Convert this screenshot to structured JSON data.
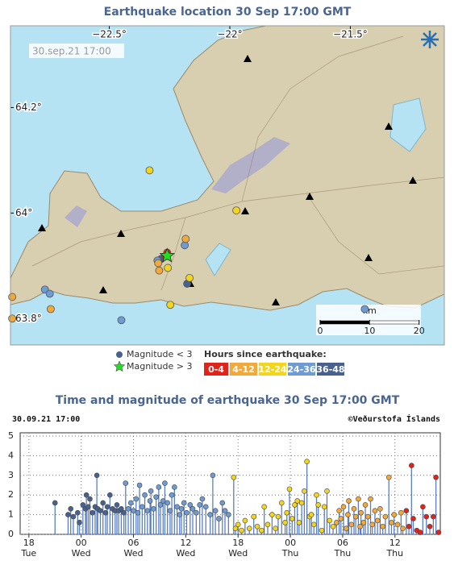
{
  "chart_data": [
    {
      "type": "map",
      "title": "Earthquake location   30 Sep 17:00 GMT",
      "timestamp": "30.sep.21  17:00",
      "xlim": [
        -22.91,
        -21.11
      ],
      "ylim": [
        63.75,
        64.355
      ],
      "xticks": [
        {
          "value": -22.5,
          "label": "−22.5°"
        },
        {
          "value": -22,
          "label": "−22°"
        },
        {
          "value": -21.5,
          "label": "−21.5°"
        }
      ],
      "yticks": [
        {
          "value": 64.2,
          "label": "64.2°"
        },
        {
          "value": 64,
          "label": "64°"
        },
        {
          "value": 63.8,
          "label": "63.8°"
        }
      ],
      "scale": {
        "unit": "km",
        "ticks": [
          0,
          10,
          20
        ]
      },
      "symbols": [
        {
          "name": "Magnitude < 3",
          "color": "#48618e"
        },
        {
          "name": "Magnitude > 3",
          "color": "#22dd22"
        }
      ],
      "legend_title": "Hours since earthquake:",
      "series": [
        {
          "name": "0-4",
          "color": "#e2231a",
          "x": [
            -22.267,
            -22.26
          ],
          "values": [
            63.918,
            63.925
          ]
        },
        {
          "name": "4-12",
          "color": "#f3a93a",
          "x": [
            -22.183,
            -22.297,
            -22.293,
            -22.903,
            -22.743,
            -22.903
          ],
          "values": [
            63.951,
            63.905,
            63.891,
            63.841,
            63.818,
            63.8
          ]
        },
        {
          "name": "12-24",
          "color": "#f2d51c",
          "x": [
            -22.333,
            -21.973,
            -22.257,
            -22.167,
            -22.247
          ],
          "values": [
            64.081,
            64.005,
            63.896,
            63.877,
            63.826
          ]
        },
        {
          "name": "24-36",
          "color": "#6e9bd4",
          "x": [
            -22.187,
            -22.45,
            -22.767,
            -22.747,
            -21.44,
            -22.3
          ],
          "values": [
            63.939,
            63.797,
            63.855,
            63.847,
            63.818,
            63.91
          ]
        },
        {
          "name": "36-48",
          "color": "#48618e",
          "x": [
            -22.177,
            -22.285
          ],
          "values": [
            63.866,
            63.913
          ]
        }
      ],
      "stars": {
        "x": [
          -22.26
        ],
        "values": [
          63.919
        ]
      }
    },
    {
      "type": "stem",
      "title": "Time and magnitude of earthquake   30 Sep 17:00 GMT",
      "header_left": "30.09.21 17:00",
      "header_right": "©Veðurstofa Íslands",
      "xlim": [
        17,
        65.2
      ],
      "ylim": [
        0,
        5
      ],
      "yticks": [
        0,
        1,
        2,
        3,
        4,
        5
      ],
      "xticks": [
        {
          "value": 18,
          "label": "18",
          "day": "Tue"
        },
        {
          "value": 24,
          "label": "00",
          "day": "Wed"
        },
        {
          "value": 30,
          "label": "06",
          "day": "Wed"
        },
        {
          "value": 36,
          "label": "12",
          "day": "Wed"
        },
        {
          "value": 42,
          "label": "18",
          "day": "Wed"
        },
        {
          "value": 48,
          "label": "00",
          "day": "Thu"
        },
        {
          "value": 54,
          "label": "06",
          "day": "Thu"
        },
        {
          "value": 60,
          "label": "12",
          "day": "Thu"
        }
      ],
      "grid": true,
      "stem_color": "#5b80c2",
      "series": [
        {
          "color": "#e2231a",
          "x": [
            61.3,
            61.6,
            61.9,
            62.1,
            62.5,
            62.9,
            63.2,
            63.6,
            64.0,
            64.4,
            64.7,
            65.0
          ],
          "values": [
            1.2,
            0.4,
            3.5,
            0.8,
            0.2,
            0.1,
            1.4,
            0.9,
            0.4,
            0.9,
            2.9,
            0.1
          ]
        },
        {
          "color": "#f3a93a",
          "x": [
            53.3,
            53.6,
            53.8,
            54.1,
            54.4,
            54.6,
            54.7,
            55.0,
            55.3,
            55.5,
            55.8,
            56.0,
            56.1,
            56.4,
            56.6,
            56.9,
            57.2,
            57.4,
            57.7,
            58.0,
            58.3,
            58.6,
            58.9,
            59.3,
            59.6,
            59.9,
            60.3,
            60.7,
            60.9
          ],
          "values": [
            0.6,
            1.2,
            0.8,
            1.4,
            0.3,
            1.0,
            1.7,
            0.5,
            1.3,
            0.9,
            1.8,
            0.4,
            1.1,
            0.6,
            1.5,
            0.9,
            1.8,
            0.5,
            1.2,
            0.7,
            1.3,
            0.4,
            0.9,
            2.9,
            0.6,
            1.0,
            0.5,
            1.1,
            0.3
          ]
        },
        {
          "color": "#f2d51c",
          "x": [
            41.5,
            41.7,
            42.0,
            42.4,
            42.8,
            43.3,
            43.8,
            44.2,
            44.7,
            45.0,
            45.4,
            45.9,
            46.3,
            46.6,
            47.0,
            47.4,
            47.6,
            47.9,
            48.2,
            48.5,
            48.8,
            49.0,
            49.3,
            49.6,
            49.9,
            50.2,
            50.4,
            50.7,
            51.0,
            51.2,
            51.6,
            51.9,
            52.2,
            52.5,
            52.9
          ],
          "values": [
            2.9,
            0.3,
            0.5,
            0.2,
            0.7,
            0.3,
            0.9,
            0.4,
            0.2,
            1.4,
            0.5,
            1.0,
            0.3,
            0.9,
            1.6,
            0.6,
            1.1,
            2.3,
            0.8,
            1.5,
            1.7,
            0.6,
            1.6,
            2.2,
            3.7,
            0.9,
            1.0,
            0.5,
            2.0,
            1.5,
            0.2,
            1.4,
            2.2,
            0.7,
            0.4
          ]
        },
        {
          "color": "#6e9bd4",
          "x": [
            29.1,
            29.4,
            29.7,
            30.0,
            30.3,
            30.5,
            30.7,
            31.0,
            31.3,
            31.6,
            31.9,
            32.0,
            32.3,
            32.6,
            32.9,
            33.1,
            33.4,
            33.6,
            33.9,
            34.2,
            34.4,
            34.7,
            35.0,
            35.3,
            35.5,
            35.8,
            36.1,
            36.5,
            36.8,
            37.2,
            37.6,
            37.9,
            38.3,
            38.8,
            39.1,
            39.4,
            39.8,
            40.2,
            40.5,
            40.9
          ],
          "values": [
            2.6,
            1.3,
            1.6,
            1.2,
            1.8,
            1.1,
            2.5,
            1.4,
            2.0,
            1.2,
            1.7,
            2.2,
            1.3,
            1.9,
            2.4,
            1.5,
            1.7,
            2.6,
            1.6,
            1.2,
            2.0,
            2.4,
            1.4,
            1.0,
            1.3,
            1.6,
            1.1,
            1.5,
            1.3,
            1.1,
            1.5,
            1.8,
            1.4,
            1.0,
            3.0,
            1.2,
            0.8,
            1.6,
            1.2,
            1.0
          ]
        },
        {
          "color": "#48618e",
          "x": [
            21.0,
            22.5,
            22.8,
            23.1,
            23.6,
            23.8,
            24.2,
            24.5,
            24.6,
            24.8,
            25.0,
            25.3,
            25.6,
            25.8,
            25.9,
            26.2,
            26.5,
            26.8,
            27.0,
            27.3,
            27.6,
            27.9,
            28.1,
            28.3,
            28.6,
            28.9
          ],
          "values": [
            1.6,
            1.0,
            1.3,
            0.9,
            1.1,
            0.6,
            1.5,
            1.3,
            2.0,
            1.4,
            1.8,
            1.1,
            1.4,
            3.0,
            1.3,
            1.2,
            1.6,
            1.1,
            1.4,
            2.0,
            1.3,
            1.2,
            1.5,
            1.2,
            1.3,
            1.1
          ]
        }
      ]
    }
  ]
}
